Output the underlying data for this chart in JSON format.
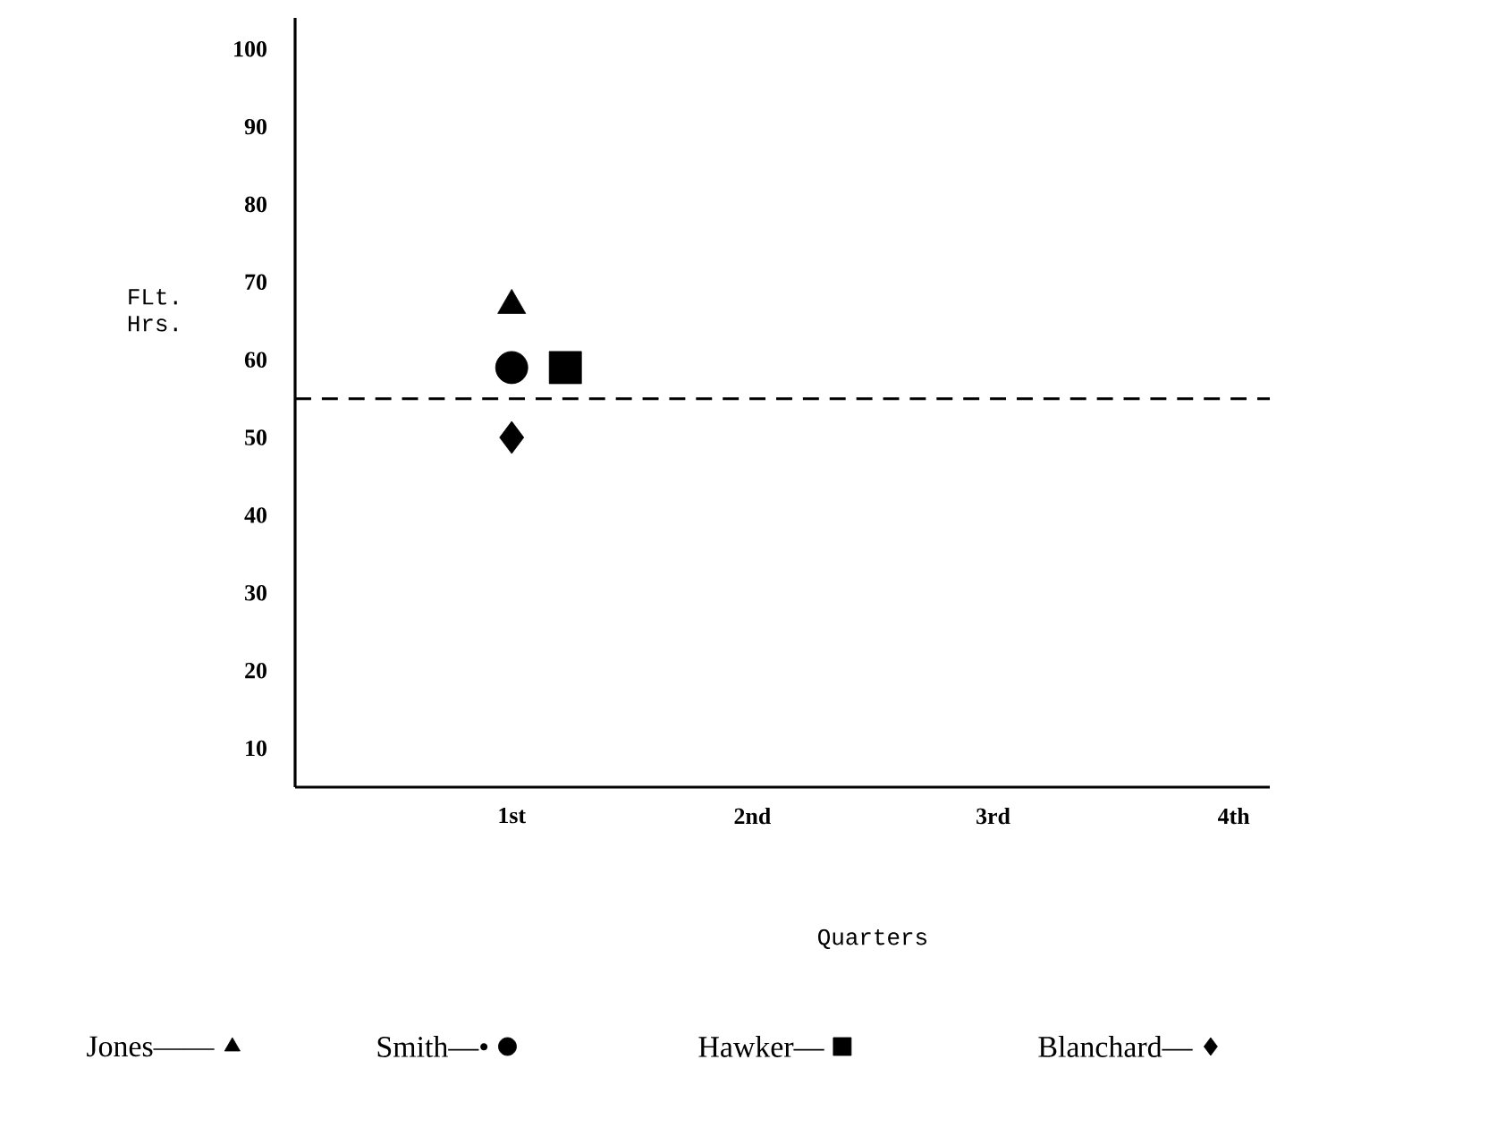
{
  "chart_data": {
    "type": "scatter",
    "xlabel": "Quarters",
    "ylabel": "FLt. Hrs.",
    "categories": [
      "1st",
      "2nd",
      "3rd",
      "4th"
    ],
    "ylim": [
      5,
      104
    ],
    "yticks": [
      10,
      20,
      30,
      40,
      50,
      60,
      70,
      80,
      90,
      100
    ],
    "series": [
      {
        "name": "Jones——",
        "color": "#000000",
        "marker": "triangle",
        "values": [
          67,
          null,
          null,
          null
        ]
      },
      {
        "name": "Smith—•",
        "color": "#000000",
        "marker": "circle",
        "values": [
          59,
          null,
          null,
          null
        ]
      },
      {
        "name": "Hawker—",
        "color": "#000000",
        "marker": "square",
        "values": [
          59,
          null,
          null,
          null
        ]
      },
      {
        "name": "Blanchard—",
        "color": "#000000",
        "marker": "diamond",
        "values": [
          50,
          null,
          null,
          null
        ]
      }
    ],
    "ref_lines": [
      {
        "axis": "y",
        "value": 55,
        "line_style": "dashed",
        "color": "#000000"
      }
    ],
    "legend": "bottom",
    "grid": false
  }
}
